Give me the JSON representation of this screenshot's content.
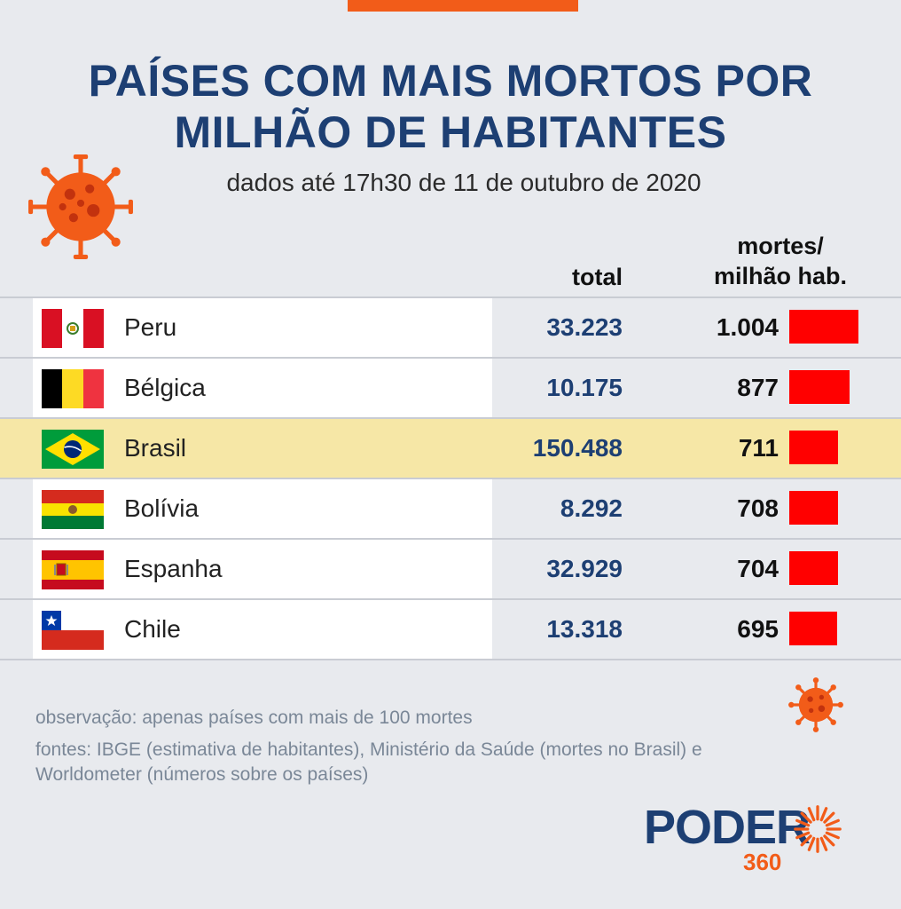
{
  "header": {
    "title_line1": "PAÍSES COM MAIS MORTOS POR",
    "title_line2": "MILHÃO DE HABITANTES",
    "subtitle": "dados até 17h30 de 11 de outubro de 2020"
  },
  "columns": {
    "total": "total",
    "rate_line1": "mortes/",
    "rate_line2": "milhão hab."
  },
  "chart_data": {
    "type": "bar",
    "title": "PAÍSES COM MAIS MORTOS POR MILHÃO DE HABITANTES",
    "subtitle": "dados até 17h30 de 11 de outubro de 2020",
    "categories": [
      "Peru",
      "Bélgica",
      "Brasil",
      "Bolívia",
      "Espanha",
      "Chile"
    ],
    "series": [
      {
        "name": "total",
        "values": [
          33223,
          10175,
          150488,
          8292,
          32929,
          13318
        ]
      },
      {
        "name": "mortes/milhão hab.",
        "values": [
          1004,
          877,
          711,
          708,
          704,
          695
        ]
      }
    ],
    "highlight": "Brasil",
    "rows": [
      {
        "country": "Peru",
        "flag": "peru-flag",
        "total": "33.223",
        "rate": "1.004",
        "rate_value": 1004
      },
      {
        "country": "Bélgica",
        "flag": "belgium-flag",
        "total": "10.175",
        "rate": "877",
        "rate_value": 877
      },
      {
        "country": "Brasil",
        "flag": "brazil-flag",
        "total": "150.488",
        "rate": "711",
        "rate_value": 711
      },
      {
        "country": "Bolívia",
        "flag": "bolivia-flag",
        "total": "8.292",
        "rate": "708",
        "rate_value": 708
      },
      {
        "country": "Espanha",
        "flag": "spain-flag",
        "total": "32.929",
        "rate": "704",
        "rate_value": 704
      },
      {
        "country": "Chile",
        "flag": "chile-flag",
        "total": "13.318",
        "rate": "695",
        "rate_value": 695
      }
    ],
    "bar_color": "#ff0000",
    "bar_max": 1004
  },
  "notes": {
    "observation": "observação: apenas países com mais de 100 mortes",
    "sources": "fontes: IBGE (estimativa de habitantes), Ministério da Saúde (mortes no Brasil) e Worldometer (números sobre os países)"
  },
  "logo": {
    "text": "PODER",
    "number": "360"
  },
  "colors": {
    "navy": "#1d3f73",
    "orange": "#f25c19",
    "highlight": "#f6e7a6",
    "background": "#e8eaee"
  },
  "icons": [
    "coronavirus-icon",
    "poder360-sun-icon"
  ]
}
